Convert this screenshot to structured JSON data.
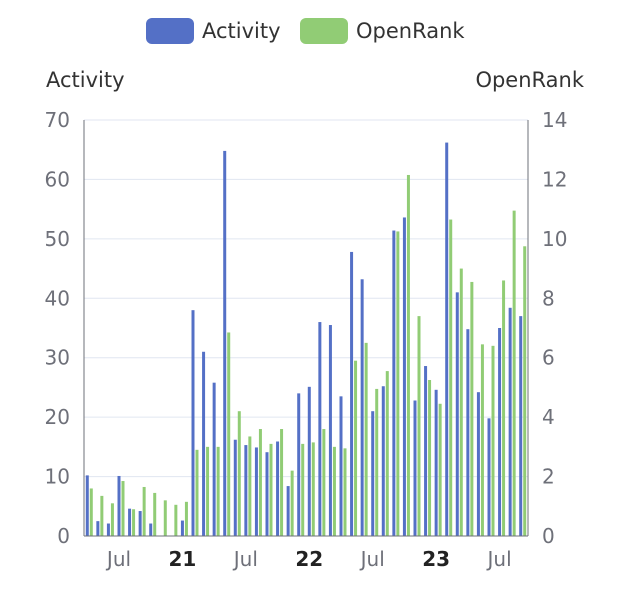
{
  "chart_data": {
    "type": "bar",
    "legend": [
      {
        "name": "Activity",
        "color": "#5470c6"
      },
      {
        "name": "OpenRank",
        "color": "#91cc75"
      }
    ],
    "legend_position": "top-center",
    "y_left": {
      "label": "Activity",
      "min": 0,
      "max": 70,
      "ticks": [
        0,
        10,
        20,
        30,
        40,
        50,
        60,
        70
      ]
    },
    "y_right": {
      "label": "OpenRank",
      "min": 0,
      "max": 14,
      "ticks": [
        0,
        2,
        4,
        6,
        8,
        10,
        12,
        14
      ]
    },
    "x_labels": [
      {
        "index": 3,
        "text": "Jul",
        "bold": false
      },
      {
        "index": 9,
        "text": "21",
        "bold": true
      },
      {
        "index": 15,
        "text": "Jul",
        "bold": false
      },
      {
        "index": 21,
        "text": "22",
        "bold": true
      },
      {
        "index": 27,
        "text": "Jul",
        "bold": false
      },
      {
        "index": 33,
        "text": "23",
        "bold": true
      },
      {
        "index": 39,
        "text": "Jul",
        "bold": false
      }
    ],
    "grid": true,
    "series": [
      {
        "name": "Activity",
        "axis": "left",
        "values": [
          10.2,
          2.5,
          2.1,
          10.1,
          4.6,
          4.2,
          2.1,
          0,
          0,
          2.6,
          38,
          31,
          25.8,
          64.8,
          16.2,
          15.3,
          14.9,
          14.1,
          15.9,
          8.4,
          24,
          25.1,
          36,
          35.5,
          23.5,
          47.8,
          43.2,
          21,
          25.2,
          51.4,
          53.6,
          22.8,
          28.6,
          24.6,
          66.2,
          41,
          34.8,
          24.2,
          19.8,
          35,
          38.4,
          37
        ]
      },
      {
        "name": "OpenRank",
        "axis": "right",
        "values": [
          1.6,
          1.35,
          1.1,
          1.85,
          0.9,
          1.65,
          1.45,
          1.2,
          1.05,
          1.15,
          2.9,
          3.0,
          3.0,
          6.85,
          4.2,
          3.35,
          3.6,
          3.1,
          3.6,
          2.2,
          3.1,
          3.15,
          3.6,
          3.0,
          2.95,
          5.9,
          6.5,
          4.95,
          5.55,
          10.25,
          12.15,
          7.4,
          5.25,
          4.45,
          10.65,
          9.0,
          8.55,
          6.45,
          6.4,
          8.6,
          10.95,
          9.75
        ]
      }
    ]
  }
}
